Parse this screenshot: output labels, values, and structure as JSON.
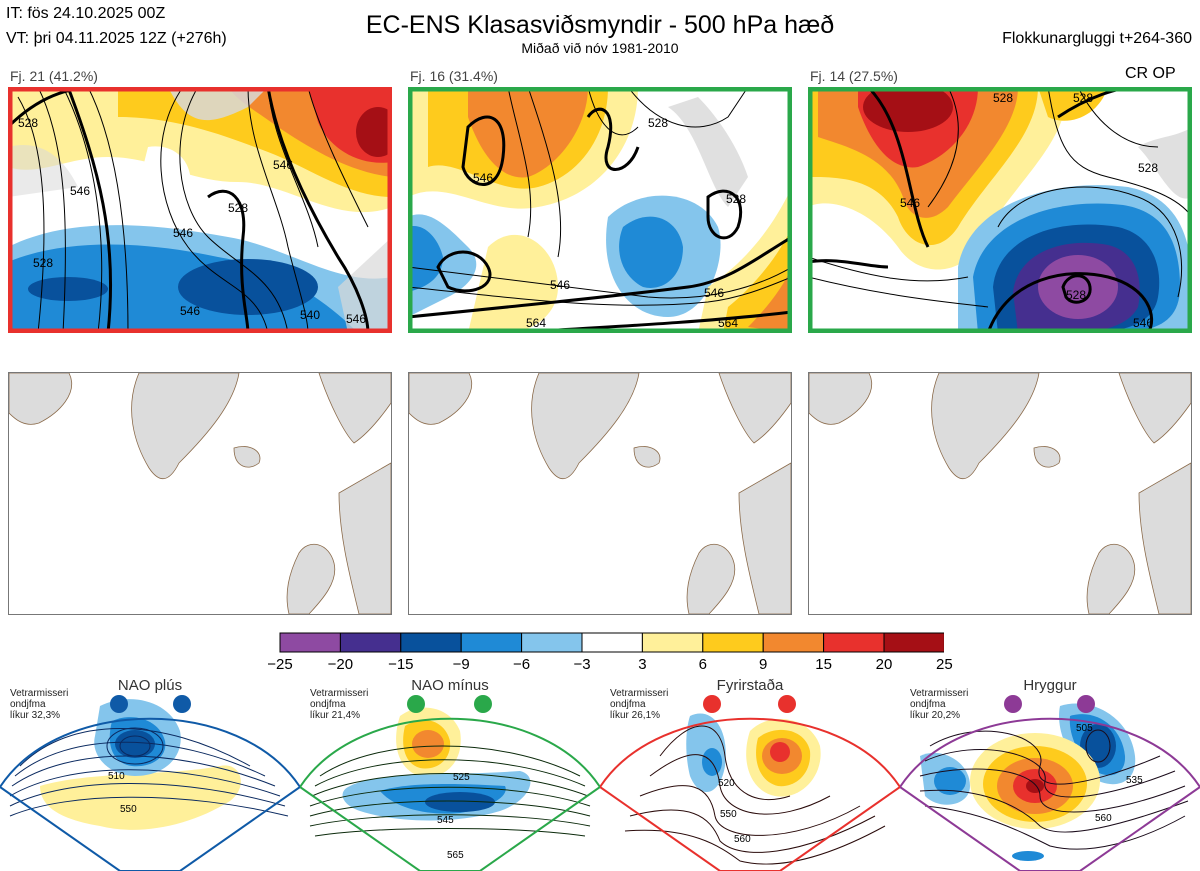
{
  "header": {
    "it": "IT: fös 24.10.2025 00Z",
    "vt": "VT: þri 04.11.2025 12Z  (+276h)",
    "title": "EC-ENS Klasasviðsmyndir - 500 hPa hæð",
    "subtitle": "Miðað við nóv 1981-2010",
    "window": "Flokkunargluggi t+264-360",
    "cr_op": "CR OP"
  },
  "clusters": [
    {
      "label": "Fj. 21 (41.2%)",
      "border": "#e8312d",
      "contours": [
        "528",
        "546",
        "528",
        "546",
        "546",
        "528",
        "546",
        "540",
        "546"
      ]
    },
    {
      "label": "Fj. 16 (31.4%)",
      "border": "#2aa84a",
      "contours": [
        "546",
        "528",
        "546",
        "546",
        "564",
        "528",
        "564"
      ]
    },
    {
      "label": "Fj. 14 (27.5%)",
      "border": "#2aa84a",
      "contours": [
        "528",
        "528",
        "546",
        "528",
        "528",
        "546"
      ]
    }
  ],
  "colorbar": {
    "ticks": [
      "−25",
      "−20",
      "−15",
      "−9",
      "−6",
      "−3",
      "3",
      "6",
      "9",
      "15",
      "20",
      "25"
    ],
    "colors": [
      "#8e4aa2",
      "#452f8f",
      "#08519c",
      "#1f8ad6",
      "#84c5ec",
      "#ffffff",
      "#fff09a",
      "#fecb1d",
      "#f2882f",
      "#e8312d",
      "#a50f15"
    ]
  },
  "regimes": [
    {
      "title": "NAO plús",
      "info": [
        "Vetrarmisseri",
        "ondjfma",
        "líkur 32,3%"
      ],
      "color": "#0f5aa7",
      "contours": [
        "510",
        "550"
      ]
    },
    {
      "title": "NAO mínus",
      "info": [
        "Vetrarmisseri",
        "ondjfma",
        "líkur 21,4%"
      ],
      "color": "#2aa84a",
      "contours": [
        "525",
        "545",
        "565"
      ]
    },
    {
      "title": "Fyrirstaða",
      "info": [
        "Vetrarmisseri",
        "ondjfma",
        "líkur 26,1%"
      ],
      "color": "#e8312d",
      "contours": [
        "520",
        "550",
        "560"
      ]
    },
    {
      "title": "Hryggur",
      "info": [
        "Vetrarmisseri",
        "ondjfma",
        "líkur 20,2%"
      ],
      "color": "#8d3a96",
      "contours": [
        "505",
        "535",
        "560"
      ]
    }
  ]
}
